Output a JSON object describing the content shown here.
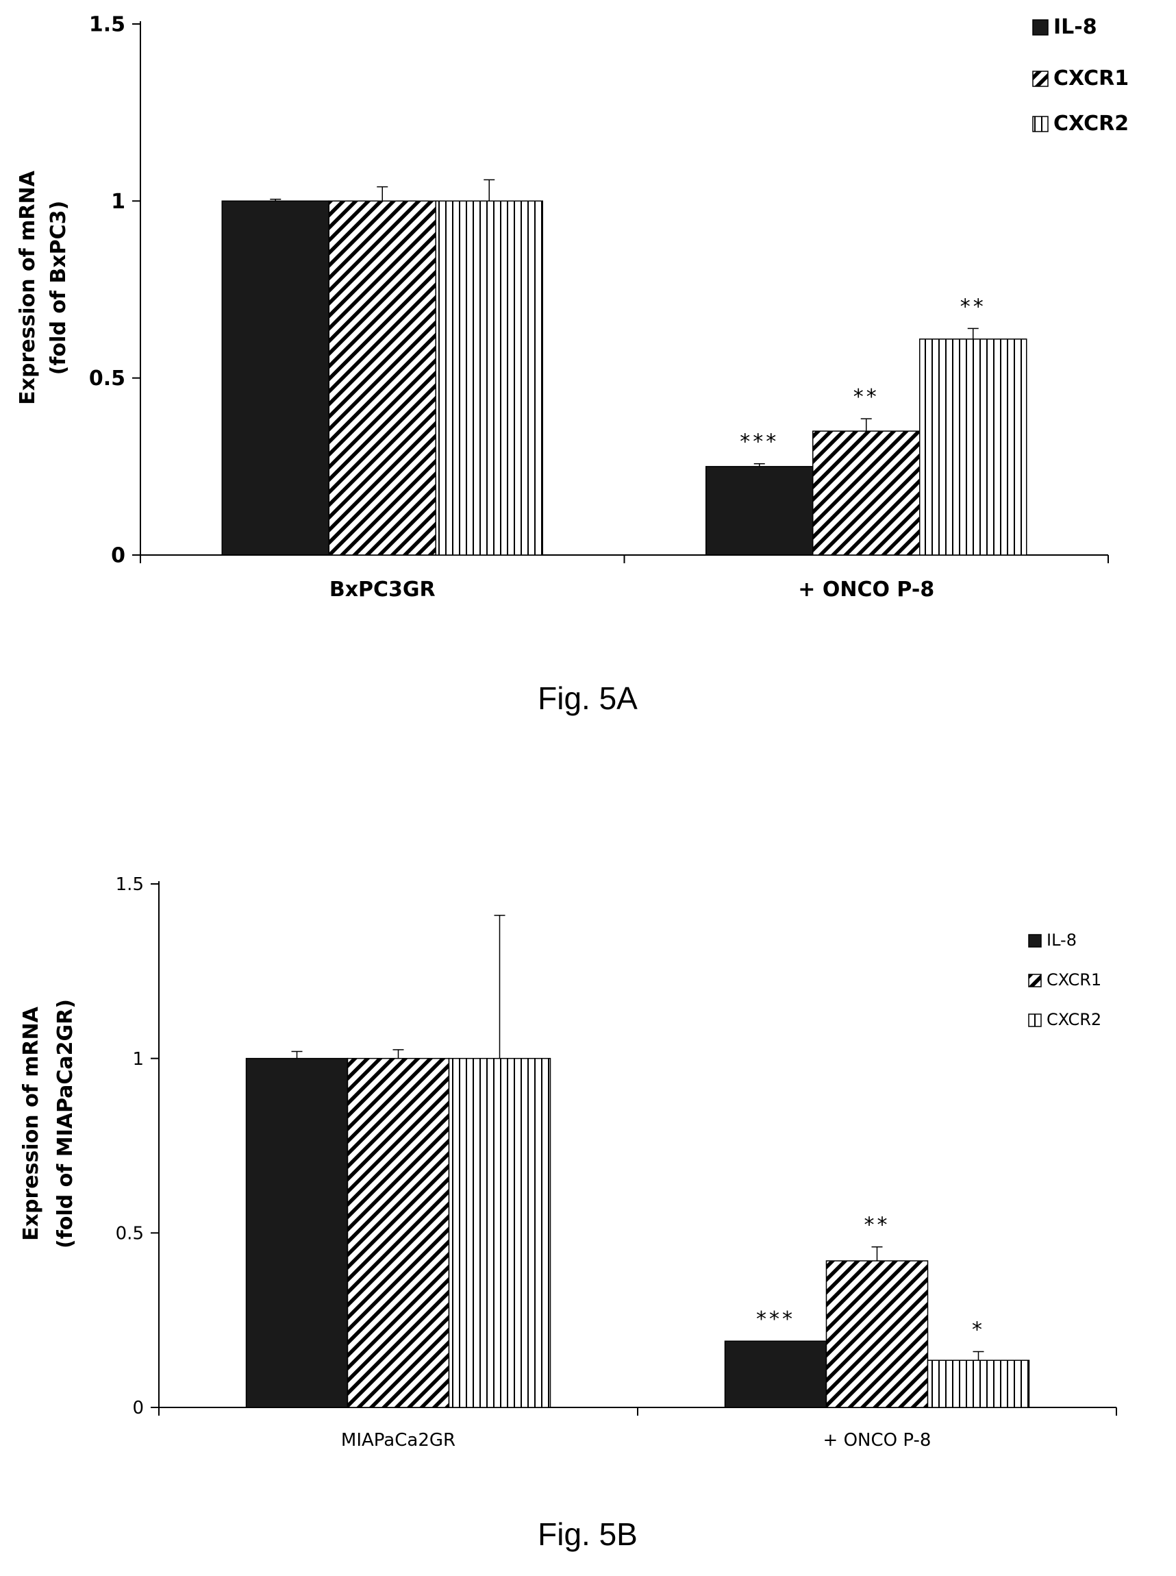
{
  "chart_data": [
    {
      "type": "bar",
      "figure_label": "Fig. 5A",
      "ylabel_lines": [
        "Expression of mRNA",
        "(fold of BxPC3)"
      ],
      "xlabel": "",
      "ylim": [
        0,
        1.5
      ],
      "yticks": [
        "0",
        "0.5",
        "1",
        "1.5"
      ],
      "ytick_values": [
        0,
        0.5,
        1,
        1.5
      ],
      "categories": [
        "BxPC3GR",
        "+ ONCO P-8"
      ],
      "legend_position": "top-right",
      "bold": true,
      "series": [
        {
          "name": "IL-8",
          "pattern": "solid",
          "values": [
            1.0,
            0.25
          ],
          "errors": [
            0.005,
            0.008
          ],
          "significance": [
            "",
            "***"
          ]
        },
        {
          "name": "CXCR1",
          "pattern": "diagonal",
          "values": [
            1.0,
            0.35
          ],
          "errors": [
            0.04,
            0.035
          ],
          "significance": [
            "",
            "**"
          ]
        },
        {
          "name": "CXCR2",
          "pattern": "vertical",
          "values": [
            1.0,
            0.61
          ],
          "errors": [
            0.06,
            0.03
          ],
          "significance": [
            "",
            "**"
          ]
        }
      ]
    },
    {
      "type": "bar",
      "figure_label": "Fig. 5B",
      "ylabel_lines": [
        "Expression of mRNA",
        "(fold of MIAPaCa2GR)"
      ],
      "xlabel": "",
      "ylim": [
        0,
        1.5
      ],
      "yticks": [
        "0",
        "0.5",
        "1",
        "1.5"
      ],
      "ytick_values": [
        0,
        0.5,
        1,
        1.5
      ],
      "categories": [
        "MIAPaCa2GR",
        "+ ONCO P-8"
      ],
      "legend_position": "top-right",
      "bold": false,
      "series": [
        {
          "name": "IL-8",
          "pattern": "solid",
          "values": [
            1.0,
            0.19
          ],
          "errors": [
            0.02,
            0.0
          ],
          "significance": [
            "",
            "***"
          ]
        },
        {
          "name": "CXCR1",
          "pattern": "diagonal",
          "values": [
            1.0,
            0.42
          ],
          "errors": [
            0.025,
            0.04
          ],
          "significance": [
            "",
            "**"
          ]
        },
        {
          "name": "CXCR2",
          "pattern": "vertical",
          "values": [
            1.0,
            0.135
          ],
          "errors": [
            0.41,
            0.025
          ],
          "significance": [
            "",
            "*"
          ]
        }
      ]
    }
  ]
}
